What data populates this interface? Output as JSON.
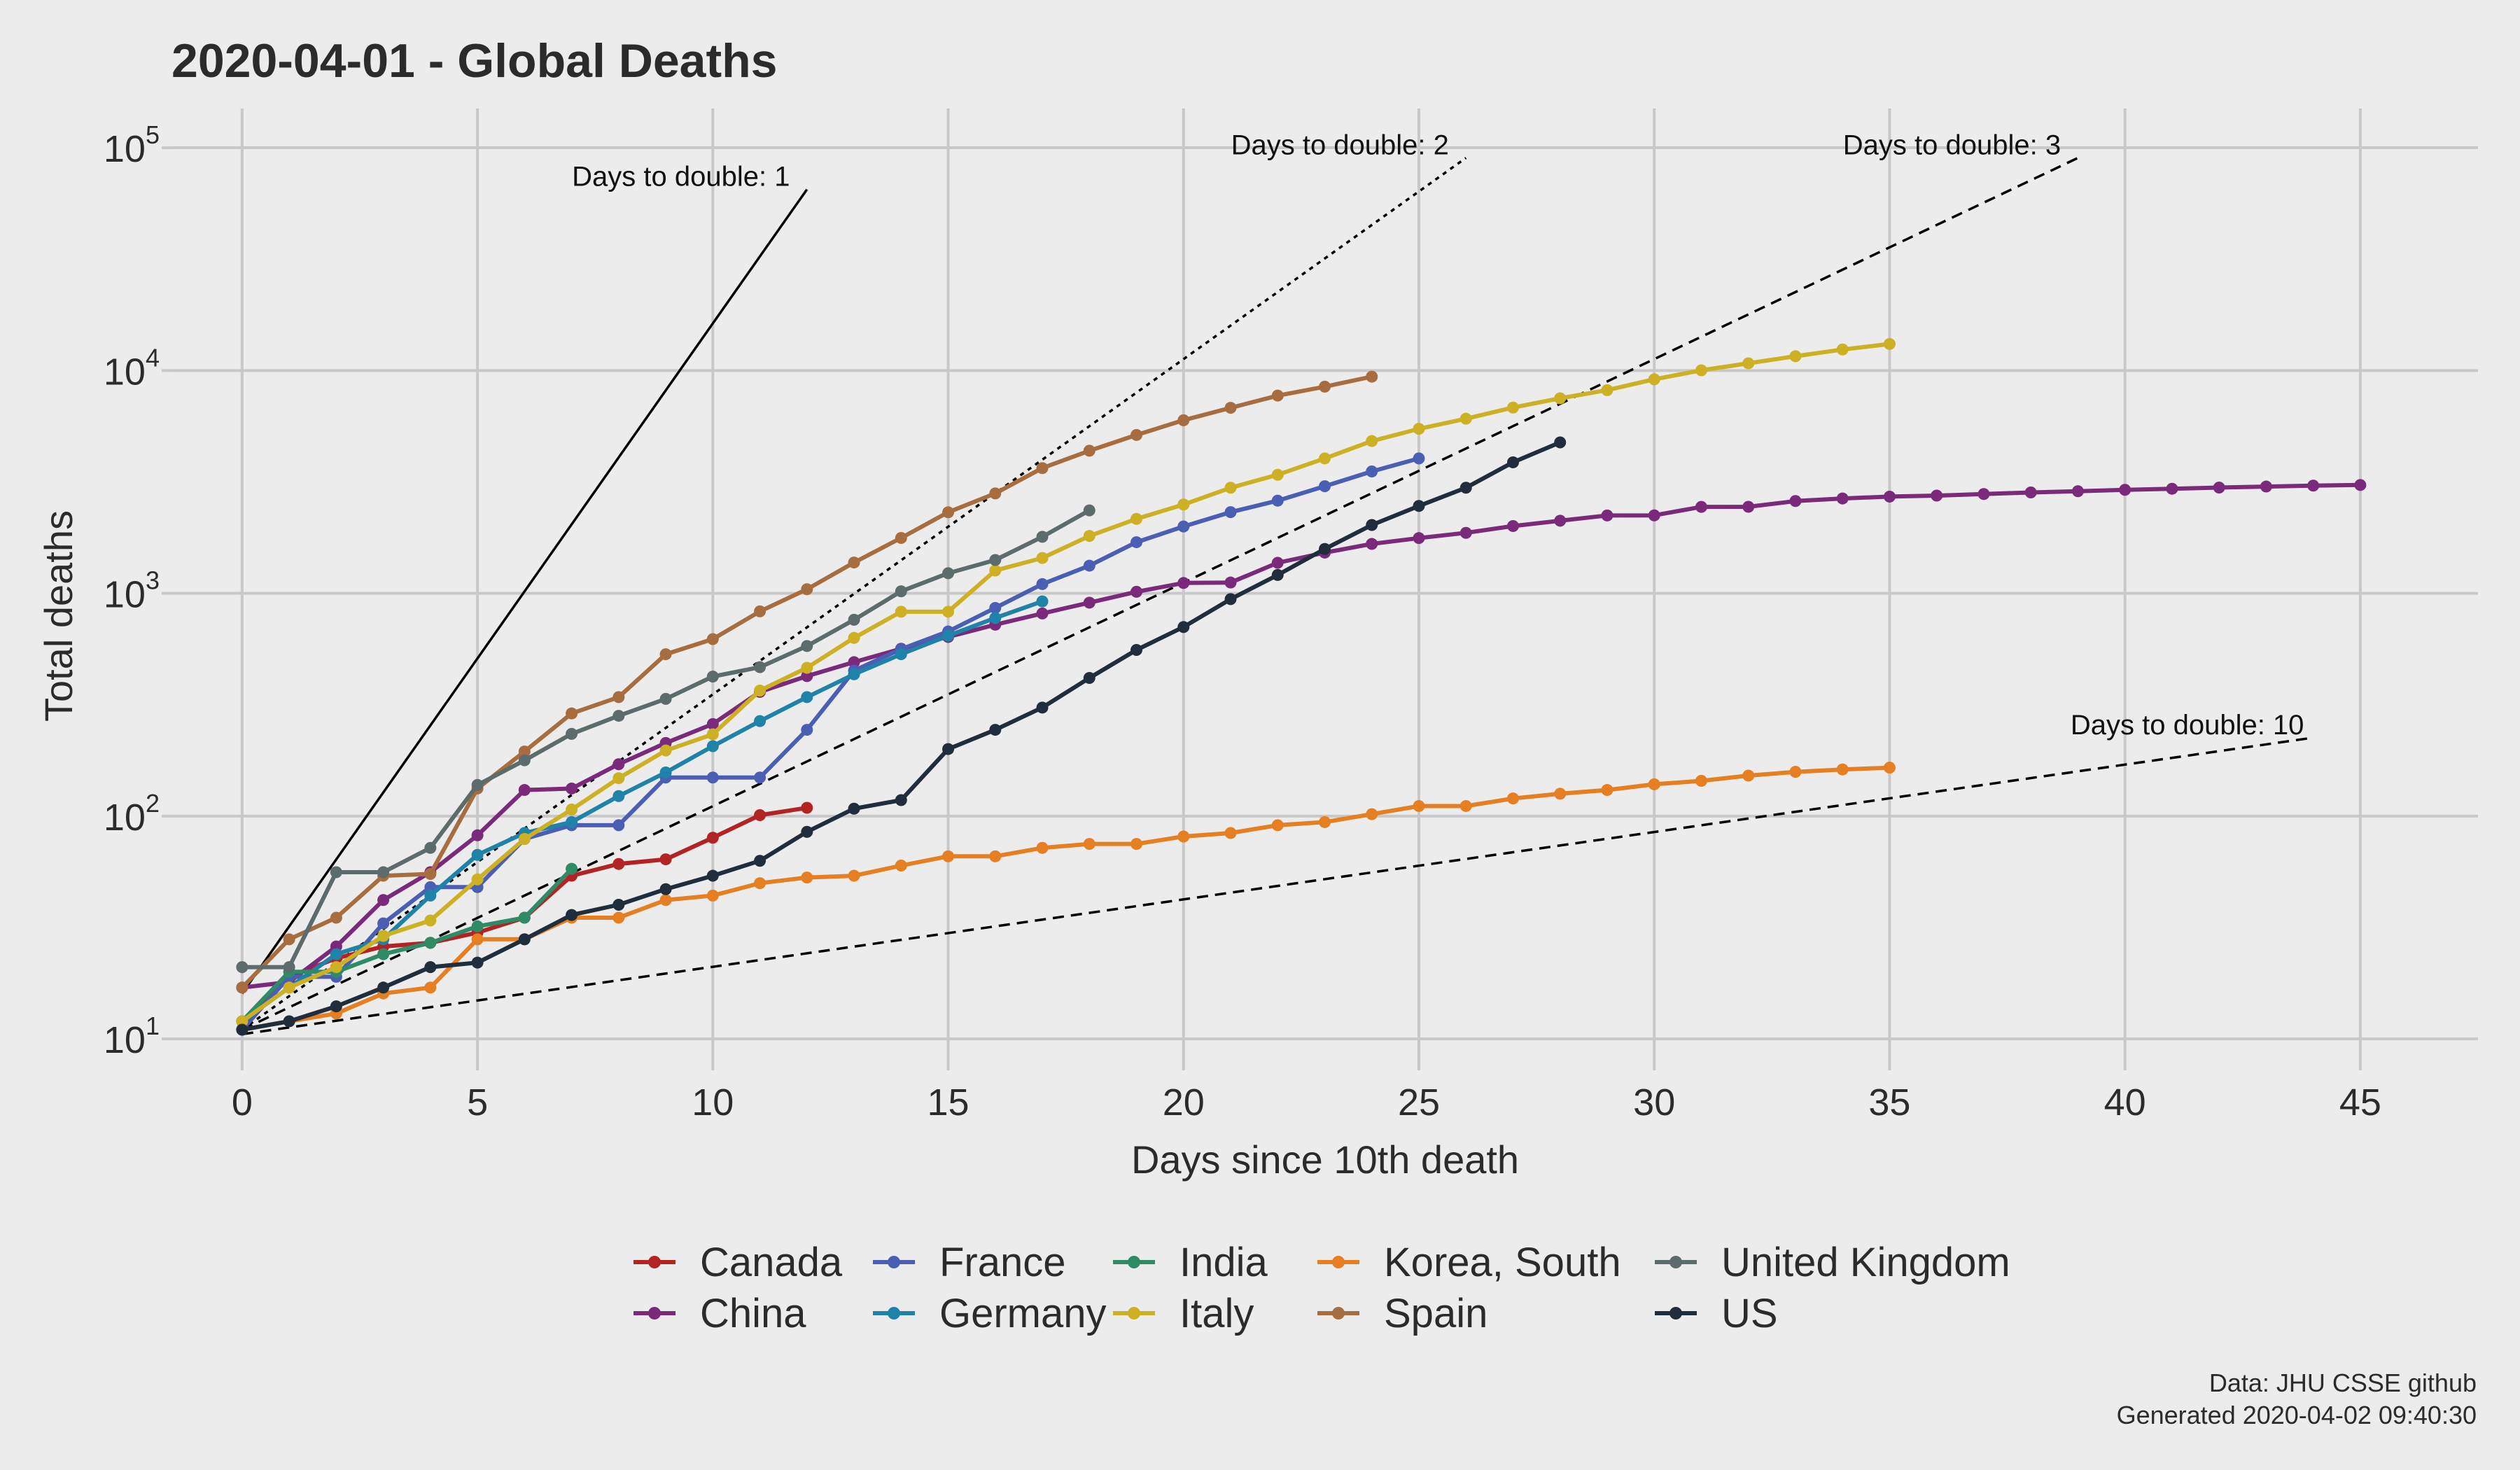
{
  "chart_data": {
    "type": "line",
    "title": "2020-04-01 - Global Deaths",
    "xlabel": "Days since 10th death",
    "ylabel": "Total deaths",
    "xlim": [
      -1.5,
      47.5
    ],
    "ylim": [
      8,
      150000
    ],
    "y_scale": "log",
    "grid": true,
    "legend_position": "bottom",
    "x_ticks": [
      0,
      5,
      10,
      15,
      20,
      25,
      30,
      35,
      40,
      45
    ],
    "x_tick_labels": [
      "0",
      "5",
      "10",
      "15",
      "20",
      "25",
      "30",
      "35",
      "40",
      "45"
    ],
    "y_ticks": [
      10,
      100,
      1000,
      10000,
      100000
    ],
    "y_tick_labels": [
      {
        "base": "10",
        "exp": "1"
      },
      {
        "base": "10",
        "exp": "2"
      },
      {
        "base": "10",
        "exp": "3"
      },
      {
        "base": "10",
        "exp": "4"
      },
      {
        "base": "10",
        "exp": "5"
      }
    ],
    "reference_lines": [
      {
        "label": "Days to double: 1",
        "start_x": 0,
        "start_y": 16,
        "end_x": 12,
        "end_y": 65000,
        "dash": "solid"
      },
      {
        "label": "Days to double: 2",
        "start_x": 0,
        "start_y": 11,
        "end_x": 26,
        "end_y": 90000,
        "dash": "dotted"
      },
      {
        "label": "Days to double: 3",
        "start_x": 0,
        "start_y": 11,
        "end_x": 39,
        "end_y": 90000,
        "dash": "dashed"
      },
      {
        "label": "Days to double: 10",
        "start_x": 0,
        "start_y": 10.5,
        "end_x": 44,
        "end_y": 225,
        "dash": "dashed"
      }
    ],
    "series": [
      {
        "name": "Canada",
        "color": "#b22424",
        "x": [
          0,
          1,
          2,
          3,
          4,
          5,
          6,
          7,
          8,
          9,
          10,
          11,
          12
        ],
        "y": [
          12,
          19,
          23,
          26,
          27,
          30,
          35,
          54,
          61,
          64,
          80,
          101,
          109
        ]
      },
      {
        "name": "China",
        "color": "#7b2a7b",
        "x": [
          0,
          1,
          2,
          3,
          4,
          5,
          6,
          7,
          8,
          9,
          10,
          11,
          12,
          13,
          14,
          15,
          16,
          17,
          18,
          19,
          20,
          21,
          22,
          23,
          24,
          25,
          26,
          27,
          28,
          29,
          30,
          31,
          32,
          33,
          34,
          35,
          36,
          37,
          38,
          39,
          40,
          41,
          42,
          43,
          44,
          45
        ],
        "y": [
          17,
          18,
          26,
          42,
          56,
          82,
          131,
          133,
          171,
          213,
          259,
          361,
          425,
          491,
          564,
          637,
          723,
          812,
          908,
          1016,
          1113,
          1118,
          1371,
          1523,
          1666,
          1770,
          1868,
          2004,
          2118,
          2236,
          2238,
          2443,
          2445,
          2595,
          2665,
          2717,
          2746,
          2790,
          2837,
          2872,
          2914,
          2947,
          2983,
          3015,
          3044,
          3064
        ]
      },
      {
        "name": "France",
        "color": "#4a5eb4",
        "x": [
          0,
          1,
          2,
          3,
          4,
          5,
          6,
          7,
          8,
          9,
          10,
          11,
          12,
          13,
          14,
          15,
          16,
          17,
          18,
          19,
          20,
          21,
          22,
          23,
          24,
          25
        ],
        "y": [
          11,
          19,
          19,
          33,
          48,
          48,
          79,
          91,
          91,
          149,
          149,
          149,
          244,
          450,
          562,
          674,
          860,
          1100,
          1331,
          1696,
          1995,
          2314,
          2606,
          3024,
          3523,
          4032
        ]
      },
      {
        "name": "Germany",
        "color": "#1f82a8",
        "x": [
          0,
          1,
          2,
          3,
          4,
          5,
          6,
          7,
          8,
          9,
          10,
          11,
          12,
          13,
          14,
          15,
          16,
          17
        ],
        "y": [
          12,
          17,
          24,
          28,
          44,
          67,
          84,
          94,
          123,
          157,
          206,
          267,
          342,
          433,
          533,
          645,
          775,
          920
        ]
      },
      {
        "name": "India",
        "color": "#2e8b66",
        "x": [
          0,
          1,
          2,
          3,
          4,
          5,
          6,
          7
        ],
        "y": [
          12,
          20,
          20,
          24,
          27,
          32,
          35,
          58
        ]
      },
      {
        "name": "Italy",
        "color": "#cdb023",
        "x": [
          0,
          1,
          2,
          3,
          4,
          5,
          6,
          7,
          8,
          9,
          10,
          11,
          12,
          13,
          14,
          15,
          16,
          17,
          18,
          19,
          20,
          21,
          22,
          23,
          24,
          25,
          26,
          27,
          28,
          29,
          30,
          31,
          32,
          33,
          34,
          35
        ],
        "y": [
          12,
          17,
          21,
          29,
          34,
          52,
          79,
          107,
          148,
          197,
          233,
          366,
          463,
          631,
          827,
          827,
          1266,
          1441,
          1809,
          2158,
          2503,
          2978,
          3405,
          4032,
          4825,
          5476,
          6077,
          6820,
          7503,
          8165,
          9134,
          10023,
          10779,
          11591,
          12428,
          13155
        ]
      },
      {
        "name": "Korea, South",
        "color": "#e67e22",
        "x": [
          0,
          1,
          2,
          3,
          4,
          5,
          6,
          7,
          8,
          9,
          10,
          11,
          12,
          13,
          14,
          15,
          16,
          17,
          18,
          19,
          20,
          21,
          22,
          23,
          24,
          25,
          26,
          27,
          28,
          29,
          30,
          31,
          32,
          33,
          34,
          35
        ],
        "y": [
          11,
          12,
          13,
          16,
          17,
          28,
          28,
          35,
          35,
          42,
          44,
          50,
          53,
          54,
          60,
          66,
          66,
          72,
          75,
          75,
          81,
          84,
          91,
          94,
          102,
          111,
          111,
          120,
          126,
          131,
          139,
          144,
          152,
          158,
          162,
          165
        ]
      },
      {
        "name": "Spain",
        "color": "#a86d3e",
        "x": [
          0,
          1,
          2,
          3,
          4,
          5,
          6,
          7,
          8,
          9,
          10,
          11,
          12,
          13,
          14,
          15,
          16,
          17,
          18,
          19,
          20,
          21,
          22,
          23,
          24
        ],
        "y": [
          17,
          28,
          35,
          54,
          55,
          133,
          195,
          289,
          342,
          533,
          623,
          830,
          1043,
          1375,
          1772,
          2311,
          2808,
          3647,
          4365,
          5138,
          5982,
          6803,
          7716,
          8464,
          9387
        ]
      },
      {
        "name": "United Kingdom",
        "color": "#5c6b6b",
        "x": [
          0,
          1,
          2,
          3,
          4,
          5,
          6,
          7,
          8,
          9,
          10,
          11,
          12,
          13,
          14,
          15,
          16,
          17,
          18
        ],
        "y": [
          21,
          21,
          56,
          56,
          72,
          138,
          178,
          234,
          282,
          336,
          423,
          466,
          580,
          761,
          1021,
          1231,
          1411,
          1793,
          2357
        ]
      },
      {
        "name": "US",
        "color": "#1f2d3d",
        "x": [
          0,
          1,
          2,
          3,
          4,
          5,
          6,
          7,
          8,
          9,
          10,
          11,
          12,
          13,
          14,
          15,
          16,
          17,
          18,
          19,
          20,
          21,
          22,
          23,
          24,
          25,
          26,
          27,
          28
        ],
        "y": [
          11,
          12,
          14,
          17,
          21,
          22,
          28,
          36,
          40,
          47,
          54,
          63,
          85,
          108,
          118,
          200,
          244,
          307,
          417,
          557,
          706,
          942,
          1209,
          1581,
          2026,
          2467,
          2978,
          3873,
          4757
        ]
      }
    ],
    "legend_layout": [
      [
        "Canada",
        "China"
      ],
      [
        "France",
        "Germany"
      ],
      [
        "India",
        "Italy"
      ],
      [
        "Korea, South",
        "Spain"
      ],
      [
        "United Kingdom",
        "US"
      ]
    ]
  },
  "caption": {
    "line1": "Data: JHU CSSE github",
    "line2": "Generated 2020-04-02 09:40:30"
  },
  "colors": {
    "background": "#ececec",
    "grid": "#c8c8c8",
    "text": "#2b2b2b"
  }
}
